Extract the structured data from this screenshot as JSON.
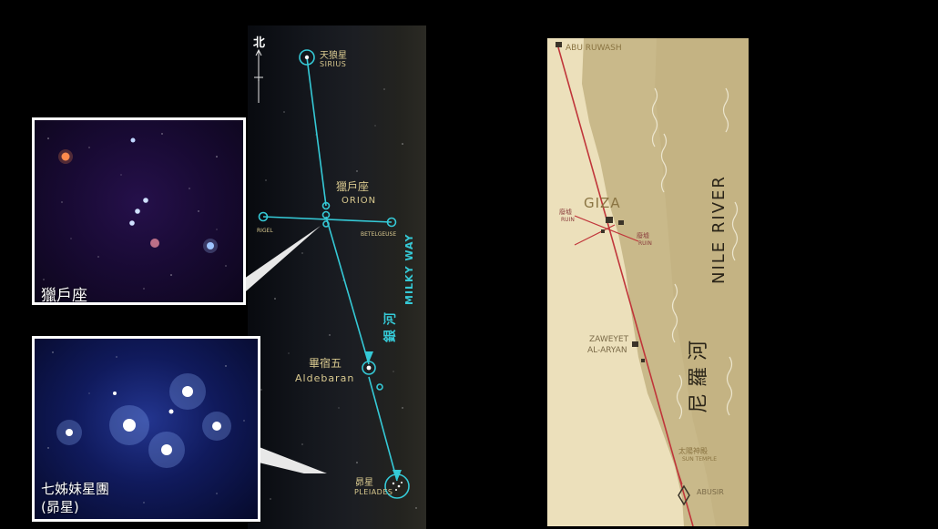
{
  "sky": {
    "north_label": "北",
    "sirius": {
      "cn": "天狼星",
      "en": "SIRIUS"
    },
    "orion": {
      "cn": "獵戶座",
      "en": "ORION"
    },
    "rigel": {
      "en": "RIGEL"
    },
    "betelgeuse": {
      "en": "BETELGEUSE"
    },
    "aldebaran": {
      "cn": "畢宿五",
      "en": "Aldebaran"
    },
    "pleiades": {
      "cn": "昴星",
      "en": "PLEIADES"
    },
    "milky_way": {
      "cn": "銀 河",
      "en": "MILKY WAY"
    },
    "colors": {
      "line": "#35c9d6",
      "gold_text": "#d9c98f"
    }
  },
  "insets": {
    "orion": {
      "caption": "獵戶座"
    },
    "pleiades": {
      "caption_line1": "七姊妹星團",
      "caption_line2": "(昴星)"
    }
  },
  "map": {
    "abu_ruwash": "ABU RUWASH",
    "giza": "GIZA",
    "ruin_left": {
      "cn": "廢墟",
      "en": "RUIN"
    },
    "ruin_right": {
      "cn": "廢墟",
      "en": "RUIN"
    },
    "zaweyet": {
      "line1": "ZAWEYET",
      "line2": "AL-ARYAN"
    },
    "sun_temple": {
      "cn": "太陽神殿",
      "en": "SUN TEMPLE"
    },
    "abusir": "ABUSIR",
    "nile_cn": "尼 羅 河",
    "nile_en": "NILE RIVER",
    "colors": {
      "desert": "#ece0bb",
      "river": "#c9b98a",
      "route": "#c0353a",
      "nile_text": "#2a2418"
    }
  }
}
